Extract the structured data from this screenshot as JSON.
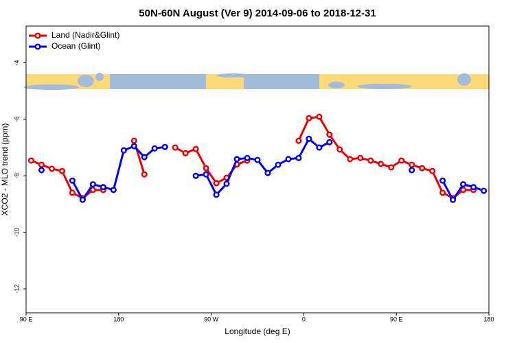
{
  "chart_data": {
    "type": "line",
    "title": "50N-60N August (Ver 9)   2014-09-06 to 2018-12-31",
    "x_label": "Longitude (deg E)",
    "y_label": "XCO2 - MLO trend (ppm)",
    "x": [
      95,
      105,
      115,
      125,
      135,
      145,
      155,
      165,
      175,
      185,
      195,
      205,
      215,
      225,
      235,
      245,
      255,
      265,
      275,
      285,
      295,
      305,
      315,
      325,
      335,
      345,
      355,
      365,
      375,
      385,
      395,
      405,
      415,
      425,
      435,
      445,
      455,
      465,
      475,
      485,
      495,
      505,
      515,
      525,
      535
    ],
    "series": [
      {
        "name": "Land (Nadir&Glint)",
        "color": "#ee0000",
        "values": [
          -7.46,
          -7.61,
          -7.75,
          -7.83,
          -8.6,
          -8.79,
          -8.5,
          -8.5,
          null,
          null,
          -6.76,
          -7.95,
          null,
          null,
          -7.0,
          -7.2,
          -7.05,
          -7.73,
          -8.26,
          -8.07,
          -7.6,
          -7.46,
          null,
          null,
          null,
          null,
          -6.76,
          -5.96,
          -5.91,
          -6.54,
          -7.07,
          -7.41,
          -7.37,
          -7.46,
          -7.58,
          -7.7,
          -7.46,
          -7.61,
          -7.73,
          -7.83,
          -8.6,
          -8.79,
          -8.5,
          -8.5,
          null
        ]
      },
      {
        "name": "Ocean (Glint)",
        "color": "#0000ee",
        "values": [
          null,
          -7.8,
          null,
          null,
          -8.17,
          -8.85,
          -8.3,
          -8.4,
          -8.5,
          -7.1,
          -6.95,
          -7.34,
          -7.03,
          -6.98,
          null,
          null,
          -8.0,
          -7.95,
          -8.67,
          -8.28,
          -7.41,
          -7.37,
          -7.44,
          -7.9,
          -7.61,
          -7.41,
          -7.37,
          -6.69,
          -7.0,
          -6.81,
          null,
          null,
          null,
          null,
          null,
          null,
          null,
          -7.8,
          null,
          null,
          -8.17,
          -8.85,
          -8.3,
          -8.4,
          -8.53
        ]
      }
    ],
    "xlim": [
      90,
      540
    ],
    "xticks": [
      {
        "value": 90,
        "label": "90 E"
      },
      180,
      {
        "value": 270,
        "label": "90 W"
      },
      {
        "value": 360,
        "label": "0"
      },
      {
        "value": 450,
        "label": "90 E"
      },
      {
        "value": 540,
        "label": "180"
      }
    ],
    "ylim": [
      -12.85,
      -2.7
    ],
    "yticks": [
      -4,
      -6,
      -8,
      -10,
      -12
    ],
    "legend": "top-left",
    "grid": false
  }
}
